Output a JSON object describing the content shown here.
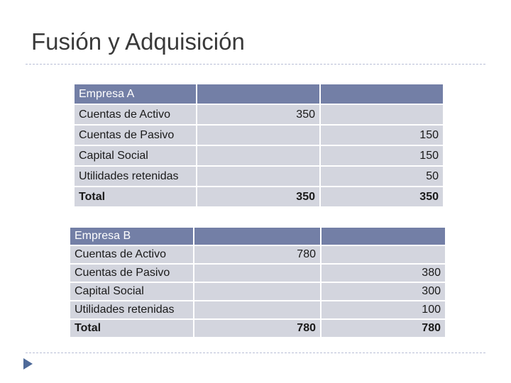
{
  "title": "Fusión y Adquisición",
  "tables": [
    {
      "rows": [
        {
          "label": "Empresa A",
          "debit": "",
          "credit": ""
        },
        {
          "label": "Cuentas de Activo",
          "debit": "350",
          "credit": ""
        },
        {
          "label": "Cuentas de Pasivo",
          "debit": "",
          "credit": "150"
        },
        {
          "label": "Capital Social",
          "debit": "",
          "credit": "150"
        },
        {
          "label": "Utilidades retenidas",
          "debit": "",
          "credit": "50"
        },
        {
          "label": "Total",
          "debit": "350",
          "credit": "350"
        }
      ]
    },
    {
      "rows": [
        {
          "label": "Empresa B",
          "debit": "",
          "credit": ""
        },
        {
          "label": "Cuentas de Activo",
          "debit": "780",
          "credit": ""
        },
        {
          "label": "Cuentas de Pasivo",
          "debit": "",
          "credit": "380"
        },
        {
          "label": "Capital Social",
          "debit": "",
          "credit": "300"
        },
        {
          "label": "Utilidades retenidas",
          "debit": "",
          "credit": "100"
        },
        {
          "label": "Total",
          "debit": "780",
          "credit": "780"
        }
      ]
    }
  ],
  "colors": {
    "header": "#737fa6",
    "cell": "#d3d5de",
    "bullet": "#4e6a99"
  }
}
